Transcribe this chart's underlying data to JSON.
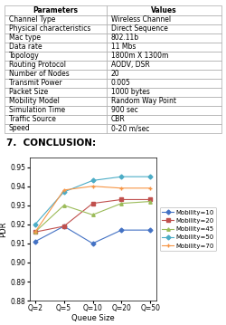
{
  "table": {
    "headers": [
      "Parameters",
      "Values"
    ],
    "rows": [
      [
        "Channel Type",
        "Wireless Channel"
      ],
      [
        "Physical characteristics",
        "Direct Sequence"
      ],
      [
        "Mac type",
        "802.11b"
      ],
      [
        "Data rate",
        "11 Mbs"
      ],
      [
        "Topology",
        "1800m X 1300m"
      ],
      [
        "Routing Protocol",
        "AODV, DSR"
      ],
      [
        "Number of Nodes",
        "20"
      ],
      [
        "Transmit Power",
        "0.005"
      ],
      [
        "Packet Size",
        "1000 bytes"
      ],
      [
        "Mobility Model",
        "Random Way Point"
      ],
      [
        "Simulation Time",
        "900 sec"
      ],
      [
        "Traffic Source",
        "CBR"
      ],
      [
        "Speed",
        "0-20 m/sec"
      ]
    ]
  },
  "section_title": "7.  CONCLUSION:",
  "x_labels": [
    "Q=2",
    "Q=5",
    "Q=10",
    "Q=20",
    "Q=50"
  ],
  "x_values": [
    0,
    1,
    2,
    3,
    4
  ],
  "ylabel": "PDR",
  "xlabel": "Queue Size",
  "ylim": [
    0.88,
    0.955
  ],
  "yticks": [
    0.88,
    0.89,
    0.9,
    0.91,
    0.92,
    0.93,
    0.94,
    0.95
  ],
  "series": [
    {
      "label": "Mobility=10",
      "color": "#4472C4",
      "marker": "D",
      "values": [
        0.911,
        0.919,
        0.91,
        0.917,
        0.917
      ]
    },
    {
      "label": "Mobility=20",
      "color": "#C0504D",
      "marker": "s",
      "values": [
        0.916,
        0.919,
        0.931,
        0.933,
        0.933
      ]
    },
    {
      "label": "Mobility=45",
      "color": "#9BBB59",
      "marker": "^",
      "values": [
        0.916,
        0.93,
        0.925,
        0.931,
        0.932
      ]
    },
    {
      "label": "Mobility=50",
      "color": "#4BACC6",
      "marker": "D",
      "values": [
        0.92,
        0.937,
        0.943,
        0.945,
        0.945
      ]
    },
    {
      "label": "Mobility=70",
      "color": "#F79646",
      "marker": "+",
      "values": [
        0.916,
        0.938,
        0.94,
        0.939,
        0.939
      ]
    }
  ],
  "background_color": "#ffffff",
  "table_font_size": 5.5,
  "section_font_size": 7.5,
  "axis_fontsize": 6,
  "tick_fontsize": 5.5,
  "legend_fontsize": 5
}
